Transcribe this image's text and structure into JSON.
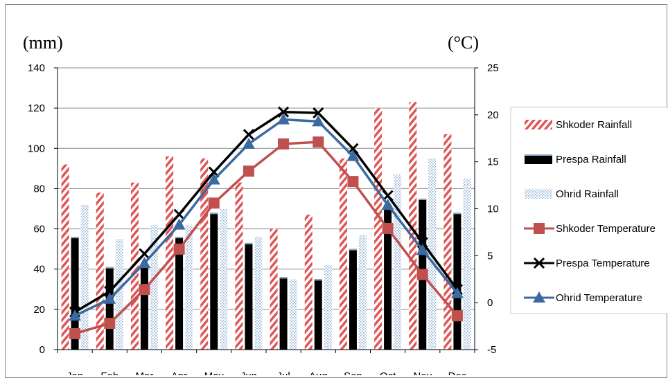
{
  "chart_data": {
    "type": "bar+line",
    "categories": [
      "Jan",
      "Feb",
      "Mar",
      "Apr",
      "May",
      "Jun",
      "Jul",
      "Aug",
      "Sep",
      "Oct",
      "Nov",
      "Dec"
    ],
    "left_axis": {
      "unit_label": "(mm)",
      "ylim": [
        0,
        140
      ],
      "ticks": [
        0,
        20,
        40,
        60,
        80,
        100,
        120,
        140
      ]
    },
    "right_axis": {
      "unit_label": "(°C)",
      "ylim": [
        -5,
        25
      ],
      "ticks": [
        -5,
        0,
        5,
        10,
        15,
        20,
        25
      ]
    },
    "grid": true,
    "legend_position": "right",
    "bar_series": [
      {
        "name": "Shkoder Rainfall",
        "axis": "left",
        "color": "#e05555",
        "pattern": "diagonal-stripes",
        "values": [
          92,
          78,
          83,
          96,
          95,
          83,
          60,
          67,
          95,
          120,
          123,
          107
        ]
      },
      {
        "name": "Prespa Rainfall",
        "axis": "left",
        "color": "#000000",
        "pattern": "solid",
        "values": [
          56,
          41,
          42,
          56,
          68,
          53,
          36,
          35,
          50,
          72,
          75,
          68
        ]
      },
      {
        "name": "Ohrid Rainfall",
        "axis": "left",
        "color": "#9ab8d8",
        "pattern": "dots",
        "values": [
          72,
          55,
          62,
          62,
          70,
          56,
          35,
          42,
          57,
          87,
          95,
          85
        ]
      }
    ],
    "line_series": [
      {
        "name": "Shkoder Temperature",
        "axis": "right",
        "color": "#c0504d",
        "marker": "square",
        "values": [
          -3.3,
          -2.2,
          1.4,
          5.7,
          10.6,
          14.0,
          16.9,
          17.1,
          12.9,
          7.9,
          3.0,
          -1.4
        ]
      },
      {
        "name": "Prespa Temperature",
        "axis": "right",
        "color": "#000000",
        "marker": "x",
        "values": [
          -1.0,
          1.2,
          5.2,
          9.4,
          13.9,
          17.9,
          20.3,
          20.2,
          16.4,
          11.4,
          6.4,
          1.4
        ]
      },
      {
        "name": "Ohrid Temperature",
        "axis": "right",
        "color": "#3a6aa0",
        "marker": "triangle",
        "values": [
          -1.4,
          0.4,
          4.2,
          8.3,
          13.1,
          16.9,
          19.5,
          19.3,
          15.6,
          10.4,
          5.6,
          1.0
        ]
      }
    ]
  }
}
